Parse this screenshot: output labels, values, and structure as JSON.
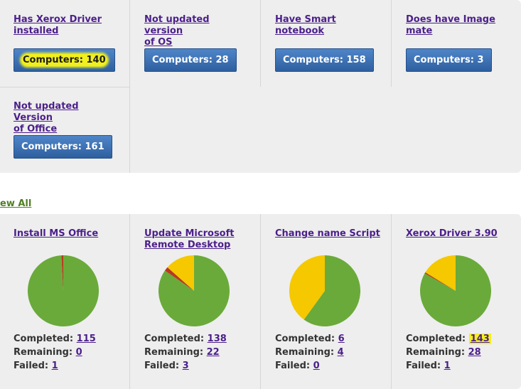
{
  "groups": [
    {
      "title": "Has Xerox Driver\ninstalled",
      "button_prefix": "Computers: ",
      "count": "140"
    },
    {
      "title": "Not updated version\nof OS",
      "button_label": "Computers: 28"
    },
    {
      "title": "Have Smart\nnotebook",
      "button_label": "Computers: 158"
    },
    {
      "title": "Does have Image\nmate",
      "button_label": "Computers: 3"
    },
    {
      "title": "Not updated Version\nof Office",
      "button_label": "Computers: 161"
    }
  ],
  "view_all": "ew All",
  "status_labels": {
    "completed": "Completed:",
    "remaining": "Remaining:",
    "failed": "Failed:"
  },
  "tasks": [
    {
      "title": "Install MS Office",
      "completed": "115",
      "remaining": "0",
      "failed": "1"
    },
    {
      "title": "Update Microsoft\nRemote Desktop",
      "completed": "138",
      "remaining": "22",
      "failed": "3"
    },
    {
      "title": "Change name Script",
      "completed": "6",
      "remaining": "4",
      "failed": "0"
    },
    {
      "title": "Xerox Driver 3.90",
      "completed": "143",
      "remaining": "28",
      "failed": "1"
    }
  ],
  "colors": {
    "completed": "#6aaa3a",
    "remaining": "#f5c800",
    "failed": "#b83a1e",
    "highlight": "#f1ef1d"
  }
}
